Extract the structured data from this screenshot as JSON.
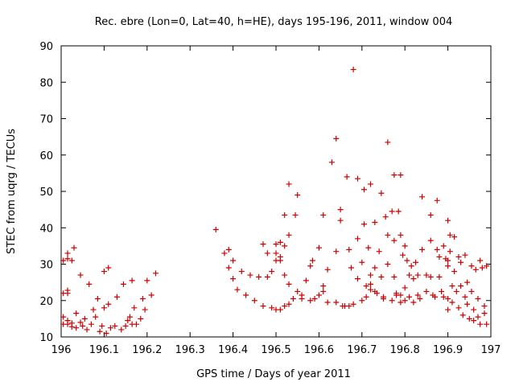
{
  "chart_data": {
    "type": "scatter",
    "title": "Rec. ebre (Lon=0, Lat=40, h=HE), days 195-196, 2011, window 004",
    "xlabel": "GPS time / Days of year 2011",
    "ylabel": "STEC from uqrg / TECUs",
    "xlim": [
      196,
      197
    ],
    "ylim": [
      10,
      90
    ],
    "xticks": [
      "196",
      "196.1",
      "196.2",
      "196.3",
      "196.4",
      "196.5",
      "196.6",
      "196.7",
      "196.8",
      "196.9",
      "197"
    ],
    "yticks": [
      "10",
      "20",
      "30",
      "40",
      "50",
      "60",
      "70",
      "80",
      "90"
    ],
    "grid": false,
    "legend": "none",
    "marker": "plus",
    "colors": {
      "marker": "#cc0000",
      "axis": "#000000"
    },
    "series": [
      {
        "points": [
          [
            196.005,
            15.5
          ],
          [
            196.005,
            13.5
          ],
          [
            196.005,
            22
          ],
          [
            196.005,
            31
          ],
          [
            196.015,
            13.5
          ],
          [
            196.015,
            14.5
          ],
          [
            196.015,
            22
          ],
          [
            196.015,
            22.8
          ],
          [
            196.015,
            31.5
          ],
          [
            196.015,
            33
          ],
          [
            196.025,
            12.8
          ],
          [
            196.025,
            13.8
          ],
          [
            196.025,
            31
          ],
          [
            196.03,
            34.5
          ],
          [
            196.035,
            12.5
          ],
          [
            196.035,
            16.5
          ],
          [
            196.045,
            14
          ],
          [
            196.045,
            27
          ],
          [
            196.05,
            13
          ],
          [
            196.055,
            15
          ],
          [
            196.06,
            12
          ],
          [
            196.065,
            24.5
          ],
          [
            196.07,
            13.5
          ],
          [
            196.075,
            17.5
          ],
          [
            196.08,
            15.5
          ],
          [
            196.085,
            20.5
          ],
          [
            196.09,
            11.5
          ],
          [
            196.095,
            13
          ],
          [
            196.1,
            18
          ],
          [
            196.1,
            28
          ],
          [
            196.105,
            11
          ],
          [
            196.11,
            19
          ],
          [
            196.115,
            12.5
          ],
          [
            196.11,
            29
          ],
          [
            196.125,
            13
          ],
          [
            196.13,
            21
          ],
          [
            196.14,
            12
          ],
          [
            196.145,
            24.5
          ],
          [
            196.15,
            13
          ],
          [
            196.155,
            14.5
          ],
          [
            196.16,
            15.5
          ],
          [
            196.165,
            25.5
          ],
          [
            196.165,
            13.5
          ],
          [
            196.17,
            18
          ],
          [
            196.175,
            13.5
          ],
          [
            196.185,
            15
          ],
          [
            196.19,
            20.5
          ],
          [
            196.195,
            17.5
          ],
          [
            196.2,
            25.5
          ],
          [
            196.21,
            21.5
          ],
          [
            196.22,
            27.5
          ],
          [
            196.36,
            39.5
          ],
          [
            196.38,
            33
          ],
          [
            196.39,
            34
          ],
          [
            196.39,
            29
          ],
          [
            196.4,
            31
          ],
          [
            196.4,
            26
          ],
          [
            196.41,
            23
          ],
          [
            196.42,
            28
          ],
          [
            196.43,
            21.5
          ],
          [
            196.44,
            27
          ],
          [
            196.45,
            20
          ],
          [
            196.46,
            26.5
          ],
          [
            196.47,
            35.5
          ],
          [
            196.47,
            18.5
          ],
          [
            196.48,
            26.5
          ],
          [
            196.48,
            33
          ],
          [
            196.49,
            18
          ],
          [
            196.49,
            28
          ],
          [
            196.5,
            33
          ],
          [
            196.5,
            31
          ],
          [
            196.5,
            35.5
          ],
          [
            196.5,
            17.5
          ],
          [
            196.51,
            36
          ],
          [
            196.51,
            17.5
          ],
          [
            196.51,
            32
          ],
          [
            196.51,
            31
          ],
          [
            196.52,
            18.5
          ],
          [
            196.52,
            35
          ],
          [
            196.52,
            43.5
          ],
          [
            196.52,
            27
          ],
          [
            196.53,
            52
          ],
          [
            196.53,
            38
          ],
          [
            196.53,
            19
          ],
          [
            196.53,
            24.5
          ],
          [
            196.54,
            20.5
          ],
          [
            196.545,
            43.5
          ],
          [
            196.55,
            22.5
          ],
          [
            196.55,
            49
          ],
          [
            196.56,
            20.5
          ],
          [
            196.56,
            21.5
          ],
          [
            196.57,
            25.5
          ],
          [
            196.58,
            20
          ],
          [
            196.58,
            29.5
          ],
          [
            196.585,
            31
          ],
          [
            196.59,
            20.5
          ],
          [
            196.6,
            34.5
          ],
          [
            196.6,
            21.5
          ],
          [
            196.61,
            43.5
          ],
          [
            196.61,
            24
          ],
          [
            196.61,
            22.5
          ],
          [
            196.62,
            19.5
          ],
          [
            196.62,
            28.5
          ],
          [
            196.63,
            58
          ],
          [
            196.64,
            64.5
          ],
          [
            196.64,
            33.5
          ],
          [
            196.64,
            19.5
          ],
          [
            196.65,
            45
          ],
          [
            196.65,
            42
          ],
          [
            196.655,
            18.5
          ],
          [
            196.66,
            18.5
          ],
          [
            196.665,
            54
          ],
          [
            196.67,
            18.5
          ],
          [
            196.67,
            34
          ],
          [
            196.675,
            29
          ],
          [
            196.68,
            83.5
          ],
          [
            196.68,
            19
          ],
          [
            196.69,
            53.5
          ],
          [
            196.69,
            37
          ],
          [
            196.69,
            26
          ],
          [
            196.7,
            30.5
          ],
          [
            196.7,
            20
          ],
          [
            196.705,
            50.5
          ],
          [
            196.705,
            41
          ],
          [
            196.71,
            24
          ],
          [
            196.71,
            21
          ],
          [
            196.715,
            34.5
          ],
          [
            196.72,
            52
          ],
          [
            196.72,
            24.5
          ],
          [
            196.72,
            23
          ],
          [
            196.72,
            27
          ],
          [
            196.73,
            29
          ],
          [
            196.73,
            41.5
          ],
          [
            196.73,
            22.5
          ],
          [
            196.735,
            22
          ],
          [
            196.74,
            33.5
          ],
          [
            196.745,
            49.5
          ],
          [
            196.745,
            26.5
          ],
          [
            196.75,
            21
          ],
          [
            196.75,
            20.5
          ],
          [
            196.755,
            43
          ],
          [
            196.76,
            63.5
          ],
          [
            196.76,
            38
          ],
          [
            196.76,
            30
          ],
          [
            196.77,
            44.5
          ],
          [
            196.77,
            20
          ],
          [
            196.775,
            54.5
          ],
          [
            196.775,
            36.5
          ],
          [
            196.775,
            26.5
          ],
          [
            196.78,
            21.5
          ],
          [
            196.78,
            22
          ],
          [
            196.785,
            44.5
          ],
          [
            196.79,
            54.5
          ],
          [
            196.79,
            38
          ],
          [
            196.79,
            21.5
          ],
          [
            196.79,
            19.5
          ],
          [
            196.795,
            32.5
          ],
          [
            196.8,
            35
          ],
          [
            196.8,
            23.5
          ],
          [
            196.8,
            20
          ],
          [
            196.805,
            31
          ],
          [
            196.81,
            27
          ],
          [
            196.81,
            21
          ],
          [
            196.815,
            29.5
          ],
          [
            196.82,
            26
          ],
          [
            196.82,
            19.5
          ],
          [
            196.825,
            30.5
          ],
          [
            196.83,
            27
          ],
          [
            196.83,
            21.5
          ],
          [
            196.835,
            20.5
          ],
          [
            196.84,
            48.5
          ],
          [
            196.84,
            34
          ],
          [
            196.85,
            27
          ],
          [
            196.85,
            22.5
          ],
          [
            196.86,
            36.5
          ],
          [
            196.86,
            43.5
          ],
          [
            196.86,
            26.5
          ],
          [
            196.865,
            21.5
          ],
          [
            196.87,
            21
          ],
          [
            196.875,
            47.5
          ],
          [
            196.875,
            34
          ],
          [
            196.88,
            32
          ],
          [
            196.88,
            26.5
          ],
          [
            196.885,
            22.5
          ],
          [
            196.89,
            35
          ],
          [
            196.89,
            21
          ],
          [
            196.895,
            31.5
          ],
          [
            196.9,
            42
          ],
          [
            196.9,
            31
          ],
          [
            196.9,
            29.5
          ],
          [
            196.9,
            20.5
          ],
          [
            196.9,
            17.5
          ],
          [
            196.905,
            38
          ],
          [
            196.905,
            33.5
          ],
          [
            196.91,
            24
          ],
          [
            196.91,
            19.5
          ],
          [
            196.915,
            37.5
          ],
          [
            196.915,
            28
          ],
          [
            196.92,
            22.5
          ],
          [
            196.925,
            32
          ],
          [
            196.925,
            18
          ],
          [
            196.93,
            30.5
          ],
          [
            196.93,
            24
          ],
          [
            196.935,
            16
          ],
          [
            196.94,
            32.5
          ],
          [
            196.94,
            21
          ],
          [
            196.945,
            25
          ],
          [
            196.945,
            19
          ],
          [
            196.95,
            15
          ],
          [
            196.955,
            29.5
          ],
          [
            196.955,
            22.5
          ],
          [
            196.96,
            17.5
          ],
          [
            196.96,
            14.5
          ],
          [
            196.965,
            28.5
          ],
          [
            196.97,
            20.5
          ],
          [
            196.97,
            15.5
          ],
          [
            196.975,
            31
          ],
          [
            196.975,
            13.5
          ],
          [
            196.98,
            29
          ],
          [
            196.985,
            18.5
          ],
          [
            196.985,
            16.5
          ],
          [
            196.99,
            13.5
          ],
          [
            196.99,
            29.5
          ]
        ]
      }
    ]
  }
}
